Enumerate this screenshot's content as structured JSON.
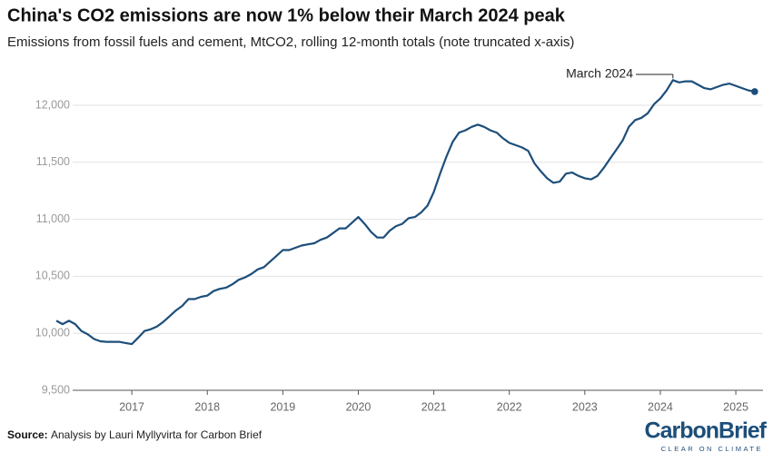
{
  "chart_data": {
    "type": "line",
    "title": "China's CO2 emissions are now 1% below their March 2024 peak",
    "subtitle": "Emissions from fossil fuels and cement, MtCO2, rolling 12-month totals (note truncated x-axis)",
    "annotation": "March 2024",
    "source_label": "Source:",
    "source_text": "Analysis by Lauri Myllyvirta for Carbon Brief",
    "logo": "CarbonBrief",
    "logo_tagline": "CLEAR ON CLIMATE",
    "color": "#1c4e7a",
    "grid": true,
    "xlim": [
      2016,
      2025.36
    ],
    "xticks": [
      2017,
      2018,
      2019,
      2020,
      2021,
      2022,
      2023,
      2024,
      2025
    ],
    "ylim": [
      9500,
      12350
    ],
    "yticks": [
      {
        "value": 9500,
        "label": "9,500"
      },
      {
        "value": 10000,
        "label": "10,000"
      },
      {
        "value": 10500,
        "label": "10,500"
      },
      {
        "value": 11000,
        "label": "11,000"
      },
      {
        "value": 11500,
        "label": "11,500"
      },
      {
        "value": 12000,
        "label": "12,000"
      }
    ],
    "x": [
      2016,
      2016.083,
      2016.167,
      2016.25,
      2016.333,
      2016.417,
      2016.5,
      2016.583,
      2016.667,
      2016.75,
      2016.833,
      2016.917,
      2017,
      2017.083,
      2017.167,
      2017.25,
      2017.333,
      2017.417,
      2017.5,
      2017.583,
      2017.667,
      2017.75,
      2017.833,
      2017.917,
      2018,
      2018.083,
      2018.167,
      2018.25,
      2018.333,
      2018.417,
      2018.5,
      2018.583,
      2018.667,
      2018.75,
      2018.833,
      2018.917,
      2019,
      2019.083,
      2019.167,
      2019.25,
      2019.333,
      2019.417,
      2019.5,
      2019.583,
      2019.667,
      2019.75,
      2019.833,
      2019.917,
      2020,
      2020.083,
      2020.167,
      2020.25,
      2020.333,
      2020.417,
      2020.5,
      2020.583,
      2020.667,
      2020.75,
      2020.833,
      2020.917,
      2021,
      2021.083,
      2021.167,
      2021.25,
      2021.333,
      2021.417,
      2021.5,
      2021.583,
      2021.667,
      2021.75,
      2021.833,
      2021.917,
      2022,
      2022.083,
      2022.167,
      2022.25,
      2022.333,
      2022.417,
      2022.5,
      2022.583,
      2022.667,
      2022.75,
      2022.833,
      2022.917,
      2023,
      2023.083,
      2023.167,
      2023.25,
      2023.333,
      2023.417,
      2023.5,
      2023.583,
      2023.667,
      2023.75,
      2023.833,
      2023.917,
      2024,
      2024.083,
      2024.167,
      2024.25,
      2024.333,
      2024.417,
      2024.5,
      2024.583,
      2024.667,
      2024.75,
      2024.833,
      2024.917,
      2025,
      2025.083,
      2025.167,
      2025.25
    ],
    "values": [
      10110,
      10080,
      10110,
      10080,
      10020,
      9990,
      9950,
      9930,
      9925,
      9925,
      9925,
      9915,
      9905,
      9960,
      10020,
      10035,
      10060,
      10100,
      10150,
      10200,
      10240,
      10300,
      10300,
      10320,
      10330,
      10370,
      10390,
      10400,
      10430,
      10470,
      10490,
      10520,
      10560,
      10580,
      10630,
      10680,
      10730,
      10730,
      10750,
      10770,
      10780,
      10790,
      10820,
      10840,
      10880,
      10920,
      10920,
      10970,
      11020,
      10960,
      10890,
      10840,
      10840,
      10900,
      10940,
      10960,
      11010,
      11020,
      11060,
      11120,
      11240,
      11400,
      11550,
      11680,
      11760,
      11780,
      11810,
      11830,
      11810,
      11780,
      11760,
      11710,
      11670,
      11650,
      11630,
      11600,
      11490,
      11420,
      11360,
      11320,
      11330,
      11400,
      11410,
      11380,
      11360,
      11350,
      11380,
      11450,
      11530,
      11610,
      11690,
      11810,
      11870,
      11890,
      11930,
      12010,
      12060,
      12130,
      12220,
      12200,
      12210,
      12210,
      12180,
      12150,
      12140,
      12160,
      12180,
      12190,
      12170,
      12150,
      12130,
      12120
    ]
  }
}
